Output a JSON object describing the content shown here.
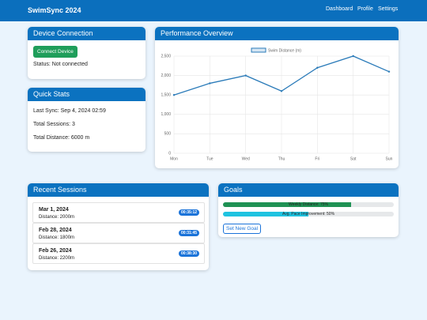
{
  "navbar": {
    "title": "SwimSync 2024",
    "links": [
      "Dashboard",
      "Profile",
      "Settings"
    ]
  },
  "device": {
    "title": "Device Connection",
    "button": "Connect Device",
    "status": "Status: Not connected"
  },
  "stats": {
    "title": "Quick Stats",
    "items": [
      "Last Sync: Sep 4, 2024 02:59",
      "Total Sessions: 3",
      "Total Distance: 6000 m"
    ]
  },
  "performance": {
    "title": "Performance Overview"
  },
  "chart_data": {
    "type": "line",
    "categories": [
      "Mon",
      "Tue",
      "Wed",
      "Thu",
      "Fri",
      "Sat",
      "Sun"
    ],
    "series": [
      {
        "name": "Swim Distance (m)",
        "color": "#2b7bb9",
        "values": [
          1500,
          1800,
          2000,
          1600,
          2200,
          2500,
          2100
        ]
      }
    ],
    "ylim": [
      0,
      2500
    ],
    "yticks": [
      0,
      500,
      {
        "value": 1000,
        "label": "1,000"
      },
      {
        "value": 1500,
        "label": "1,500"
      },
      {
        "value": 2000,
        "label": "2,000"
      },
      {
        "value": 2500,
        "label": "2,500"
      }
    ],
    "grid": true,
    "legend": "top"
  },
  "sessions": {
    "title": "Recent Sessions",
    "items": [
      {
        "date": "Mar 1, 2024",
        "distance": "Distance: 2000m",
        "time": "00:35:12"
      },
      {
        "date": "Feb 28, 2024",
        "distance": "Distance: 1800m",
        "time": "00:31:45"
      },
      {
        "date": "Feb 26, 2024",
        "distance": "Distance: 2200m",
        "time": "00:38:30"
      }
    ]
  },
  "goals": {
    "title": "Goals",
    "items": [
      {
        "label": "Weekly Distance: 75%",
        "value": 75,
        "color": "#1f9254"
      },
      {
        "label": "Avg. Pace Improvement: 50%",
        "value": 50,
        "color": "#1fc3e0"
      }
    ],
    "button": "Set New Goal"
  }
}
